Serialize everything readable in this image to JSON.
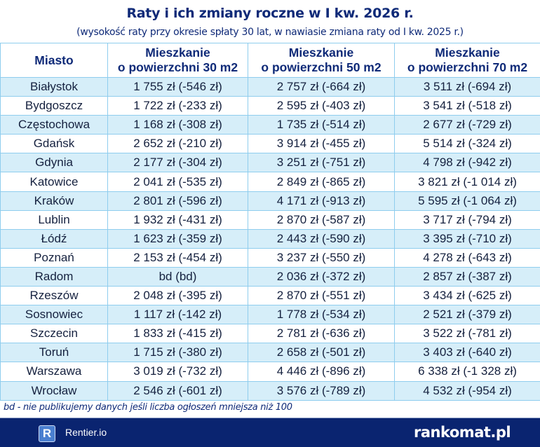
{
  "title": "Raty i ich zmiany roczne w I kw. 2026 r.",
  "subtitle": "(wysokość raty przy okresie spłaty 30 lat, w nawiasie zmiana raty od I kw. 2025 r.)",
  "chart_data": {
    "type": "table",
    "columns": [
      "Miasto",
      "Mieszkanie\no powierzchni 30 m2",
      "Mieszkanie\no powierzchni 50 m2",
      "Mieszkanie\no powierzchni 70 m2"
    ],
    "rows": [
      [
        "Białystok",
        "1 755 zł (-546 zł)",
        "2 757 zł (-664 zł)",
        "3 511 zł (-694 zł)"
      ],
      [
        "Bydgoszcz",
        "1 722 zł (-233 zł)",
        "2 595 zł (-403 zł)",
        "3 541 zł (-518 zł)"
      ],
      [
        "Częstochowa",
        "1 168 zł (-308 zł)",
        "1 735 zł (-514 zł)",
        "2 677 zł (-729 zł)"
      ],
      [
        "Gdańsk",
        "2 652 zł (-210 zł)",
        "3 914 zł (-455 zł)",
        "5 514 zł (-324 zł)"
      ],
      [
        "Gdynia",
        "2 177 zł (-304 zł)",
        "3 251 zł (-751 zł)",
        "4 798 zł (-942 zł)"
      ],
      [
        "Katowice",
        "2 041 zł (-535 zł)",
        "2 849 zł (-865 zł)",
        "3 821 zł (-1 014 zł)"
      ],
      [
        "Kraków",
        "2 801 zł (-596 zł)",
        "4 171 zł (-913 zł)",
        "5 595 zł (-1 064 zł)"
      ],
      [
        "Lublin",
        "1 932 zł (-431 zł)",
        "2 870 zł (-587 zł)",
        "3 717 zł (-794 zł)"
      ],
      [
        "Łódź",
        "1 623 zł (-359 zł)",
        "2 443 zł (-590 zł)",
        "3 395 zł (-710 zł)"
      ],
      [
        "Poznań",
        "2 153 zł (-454 zł)",
        "3 237 zł (-550 zł)",
        "4 278 zł (-643 zł)"
      ],
      [
        "Radom",
        "bd (bd)",
        "2 036 zł (-372 zł)",
        "2 857 zł (-387 zł)"
      ],
      [
        "Rzeszów",
        "2 048 zł (-395 zł)",
        "2 870 zł (-551 zł)",
        "3 434 zł (-625 zł)"
      ],
      [
        "Sosnowiec",
        "1 117 zł (-142 zł)",
        "1 778 zł (-534 zł)",
        "2 521 zł (-379 zł)"
      ],
      [
        "Szczecin",
        "1 833 zł (-415 zł)",
        "2 781 zł (-636 zł)",
        "3 522 zł (-781 zł)"
      ],
      [
        "Toruń",
        "1 715 zł (-380 zł)",
        "2 658 zł (-501 zł)",
        "3 403 zł (-640 zł)"
      ],
      [
        "Warszawa",
        "3 019 zł (-732 zł)",
        "4 446 zł (-896 zł)",
        "6 338 zł (-1 328 zł)"
      ],
      [
        "Wrocław",
        "2 546 zł (-601 zł)",
        "3 576 zł (-789 zł)",
        "4 532 zł (-954 zł)"
      ]
    ]
  },
  "note": "bd - nie publikujemy danych jeśli liczba ogłoszeń mniejsza niż 100",
  "footer": {
    "rentier_icon_letter": "R",
    "rentier_name": "Rentier.io",
    "rankomat_logo": "rankomat.pl"
  },
  "colors": {
    "header_text": "#0f2a78",
    "row_alt": "#d6eef9",
    "border": "#8fcdee",
    "footer_bg": "#0a2470"
  }
}
